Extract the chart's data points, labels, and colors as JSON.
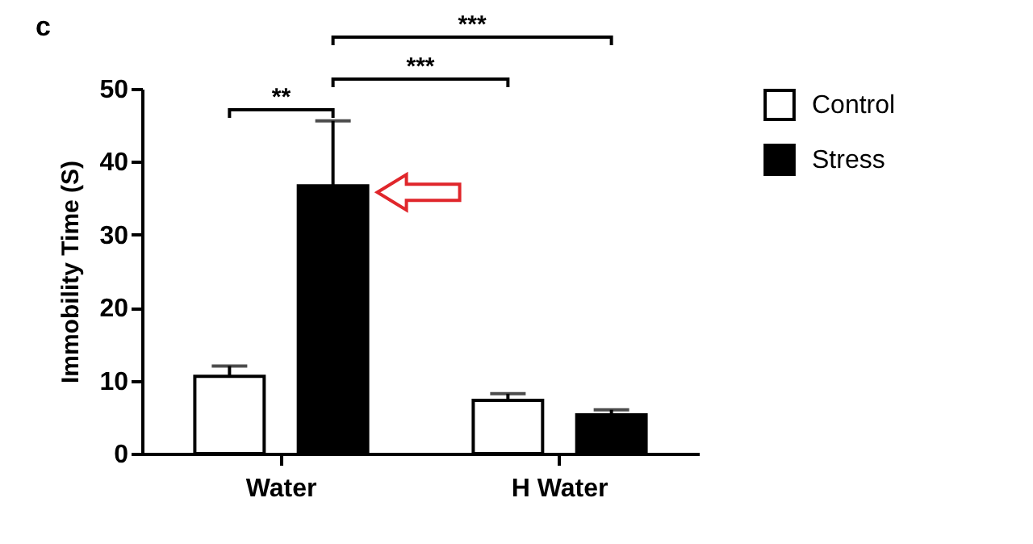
{
  "chart_data": {
    "type": "bar",
    "ylabel": "Immobility Time (S)",
    "categories": [
      "Water",
      "H Water"
    ],
    "series": [
      {
        "name": "Control",
        "color": "#ffffff",
        "values": [
          10.6,
          7.3
        ],
        "errors": [
          [
            10.6,
            12.0
          ],
          [
            7.3,
            8.2
          ]
        ]
      },
      {
        "name": "Stress",
        "color": "#000000",
        "values": [
          36.7,
          5.3
        ],
        "errors": [
          [
            36.7,
            45.6
          ],
          [
            5.3,
            6.0
          ]
        ]
      }
    ],
    "ylim": [
      0,
      50
    ],
    "yticks": [
      0,
      10,
      20,
      30,
      40,
      50
    ],
    "grid": false,
    "legend": "top right",
    "annotations": [
      "c",
      "**",
      "***",
      "***"
    ]
  }
}
